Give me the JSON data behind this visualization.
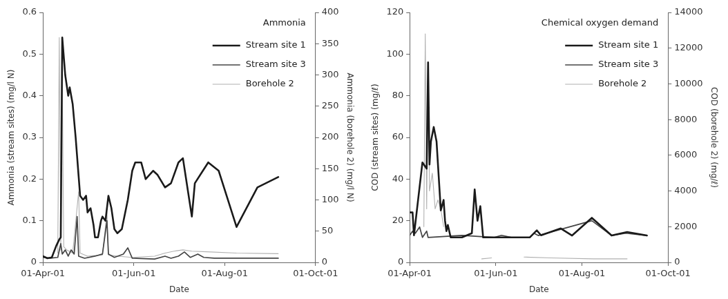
{
  "chart_data": [
    {
      "type": "line",
      "title": "Ammonia",
      "xlabel": "Date",
      "ylabel": "Ammonia (stream sites) (mg/l N)",
      "y2label": "Ammonia (borehole 2) (mg/l N)",
      "xlim": [
        "--04-01",
        "--10-01"
      ],
      "xticks": [
        {
          "value": "--04-01",
          "label": "01-Apr-01"
        },
        {
          "value": "--06-01",
          "label": "01-Jun-01"
        },
        {
          "value": "--08-01",
          "label": "01-Aug-01"
        },
        {
          "value": "--10-01",
          "label": "01-Oct-01"
        }
      ],
      "ylim": [
        0,
        0.6
      ],
      "yticks": [
        0,
        0.1,
        0.2,
        0.3,
        0.4,
        0.5,
        0.6
      ],
      "y2lim": [
        0,
        400
      ],
      "y2ticks": [
        0,
        50,
        100,
        150,
        200,
        250,
        300,
        350,
        400
      ],
      "grid": false,
      "legend": "top right",
      "marker": "none",
      "line_style": "solid",
      "series": [
        {
          "name": "Stream site 1",
          "color": "#1a1a1a",
          "x": [
            "2001-04-01",
            "2001-04-04",
            "2001-04-07",
            "2001-04-10",
            "2001-04-12",
            "2001-04-13",
            "2001-04-14",
            "2001-04-16",
            "2001-04-18",
            "2001-04-19",
            "2001-04-21",
            "2001-04-23",
            "2001-04-26",
            "2001-04-28",
            "2001-04-30",
            "2001-05-01",
            "2001-05-03",
            "2001-05-05",
            "2001-05-06",
            "2001-05-08",
            "2001-05-10",
            "2001-05-11",
            "2001-05-13",
            "2001-05-15",
            "2001-05-17",
            "2001-05-19",
            "2001-05-21",
            "2001-05-24",
            "2001-05-28",
            "2001-05-31",
            "2001-06-02",
            "2001-06-06",
            "2001-06-09",
            "2001-06-14",
            "2001-06-17",
            "2001-06-22",
            "2001-06-26",
            "2001-07-01",
            "2001-07-04",
            "2001-07-10",
            "2001-07-12",
            "2001-07-21",
            "2001-07-28",
            "2001-08-09",
            "2001-08-23",
            "2001-09-06"
          ],
          "values": [
            0.015,
            0.01,
            0.012,
            0.04,
            0.055,
            0.06,
            0.54,
            0.45,
            0.4,
            0.42,
            0.38,
            0.3,
            0.16,
            0.15,
            0.16,
            0.12,
            0.13,
            0.09,
            0.06,
            0.06,
            0.1,
            0.11,
            0.1,
            0.16,
            0.13,
            0.08,
            0.07,
            0.08,
            0.15,
            0.22,
            0.24,
            0.24,
            0.2,
            0.22,
            0.21,
            0.18,
            0.19,
            0.24,
            0.25,
            0.11,
            0.19,
            0.24,
            0.22,
            0.085,
            0.18,
            0.205
          ]
        },
        {
          "name": "Stream site 3",
          "color": "#444444",
          "x": [
            "2001-04-01",
            "2001-04-06",
            "2001-04-11",
            "2001-04-13",
            "2001-04-14",
            "2001-04-16",
            "2001-04-18",
            "2001-04-20",
            "2001-04-22",
            "2001-04-24",
            "2001-04-25",
            "2001-04-29",
            "2001-05-06",
            "2001-05-11",
            "2001-05-14",
            "2001-05-15",
            "2001-05-19",
            "2001-05-25",
            "2001-05-28",
            "2001-05-31",
            "2001-06-15",
            "2001-06-22",
            "2001-06-26",
            "2001-07-01",
            "2001-07-05",
            "2001-07-09",
            "2001-07-14",
            "2001-07-18",
            "2001-07-25",
            "2001-09-06"
          ],
          "values": [
            0.012,
            0.01,
            0.012,
            0.045,
            0.02,
            0.03,
            0.015,
            0.03,
            0.02,
            0.11,
            0.015,
            0.01,
            0.015,
            0.02,
            0.1,
            0.02,
            0.012,
            0.02,
            0.035,
            0.01,
            0.008,
            0.015,
            0.01,
            0.015,
            0.025,
            0.012,
            0.02,
            0.012,
            0.01,
            0.01
          ]
        },
        {
          "name": "Borehole 2",
          "color": "#b0b0b0",
          "axis": "y2",
          "x": [
            "2001-04-11",
            "2001-04-12",
            "2001-04-13",
            "2001-04-14",
            "2001-04-15",
            "2001-04-17",
            "2001-04-21",
            "2001-04-25",
            "2001-04-26",
            "2001-05-01",
            "2001-05-11",
            "2001-05-14",
            "2001-05-15",
            "2001-05-21",
            "2001-05-31",
            "2001-06-15",
            "2001-06-22",
            "2001-06-28",
            "2001-07-04",
            "2001-07-10",
            "2001-07-20",
            "2001-08-09",
            "2001-09-06"
          ],
          "values": [
            15,
            360,
            20,
            300,
            25,
            20,
            15,
            113,
            15,
            10,
            12,
            80,
            12,
            10,
            8,
            10,
            15,
            18,
            20,
            18,
            17,
            15,
            14
          ]
        }
      ]
    },
    {
      "type": "line",
      "title": "Chemical oxygen demand",
      "xlabel": "Date",
      "ylabel": "COD (stream sites) (mg/ℓ)",
      "y2label": "COD (borehole 2) (mg/ℓ)",
      "xlim": [
        "--04-01",
        "--10-01"
      ],
      "xticks": [
        {
          "value": "--04-01",
          "label": "01-Apr-01"
        },
        {
          "value": "--06-01",
          "label": "01-Jun-01"
        },
        {
          "value": "--08-01",
          "label": "01-Aug-01"
        },
        {
          "value": "--10-01",
          "label": "01-Oct-01"
        }
      ],
      "ylim": [
        0,
        120
      ],
      "yticks": [
        0,
        20,
        40,
        60,
        80,
        100,
        120
      ],
      "y2lim": [
        0,
        14000
      ],
      "y2ticks": [
        0,
        2000,
        4000,
        6000,
        8000,
        10000,
        12000,
        14000
      ],
      "grid": false,
      "legend": "top right",
      "marker": "none",
      "line_style": "solid",
      "series": [
        {
          "name": "Stream site 1",
          "color": "#1a1a1a",
          "x": [
            "2001-04-01",
            "2001-04-03",
            "2001-04-04",
            "2001-04-10",
            "2001-04-13",
            "2001-04-14",
            "2001-04-15",
            "2001-04-16",
            "2001-04-18",
            "2001-04-20",
            "2001-04-23",
            "2001-04-25",
            "2001-04-26",
            "2001-04-27",
            "2001-04-28",
            "2001-04-30",
            "2001-05-08",
            "2001-05-15",
            "2001-05-17",
            "2001-05-19",
            "2001-05-21",
            "2001-05-23",
            "2001-06-25",
            "2001-06-30",
            "2001-07-03",
            "2001-07-17",
            "2001-07-25",
            "2001-08-08",
            "2001-08-22",
            "2001-09-02",
            "2001-09-16"
          ],
          "values": [
            24,
            24,
            13,
            48,
            45,
            96,
            47,
            58,
            65,
            58,
            25,
            30,
            20,
            15,
            18,
            12,
            12,
            14,
            35,
            20,
            27,
            12,
            12,
            15.4,
            13,
            16.3,
            12.9,
            21.4,
            12.9,
            14.6,
            12.9
          ]
        },
        {
          "name": "Stream site 3",
          "color": "#444444",
          "x": [
            "2001-04-01",
            "2001-04-03",
            "2001-04-05",
            "2001-04-08",
            "2001-04-10",
            "2001-04-13",
            "2001-04-14",
            "2001-05-08",
            "2001-05-31",
            "2001-06-05",
            "2001-06-12",
            "2001-06-25",
            "2001-06-28",
            "2001-07-01",
            "2001-08-08",
            "2001-08-22",
            "2001-09-01",
            "2001-09-16"
          ],
          "values": [
            13,
            15,
            14,
            17,
            12,
            15,
            12,
            13,
            12,
            13,
            12,
            12,
            14,
            12.9,
            20,
            12.9,
            14,
            12.9
          ]
        },
        {
          "name": "Borehole 2",
          "color": "#b0b0b0",
          "axis": "y2",
          "x": [
            "2001-04-11",
            "2001-04-12",
            "2001-04-13",
            "2001-04-14",
            "2001-04-15",
            "2001-04-17",
            "2001-04-19",
            "2001-04-21",
            "2001-04-23",
            "2001-04-25",
            "2001-04-26",
            "2001-05-22",
            "2001-05-29",
            "2001-05-30",
            "2001-06-21",
            "2001-07-10",
            "2001-08-09",
            "2001-09-02"
          ],
          "values": [
            2000,
            12800,
            3000,
            11000,
            4000,
            5000,
            3000,
            3500,
            3000,
            2000,
            null,
            200,
            250,
            null,
            300,
            250,
            200,
            200
          ]
        }
      ]
    }
  ]
}
